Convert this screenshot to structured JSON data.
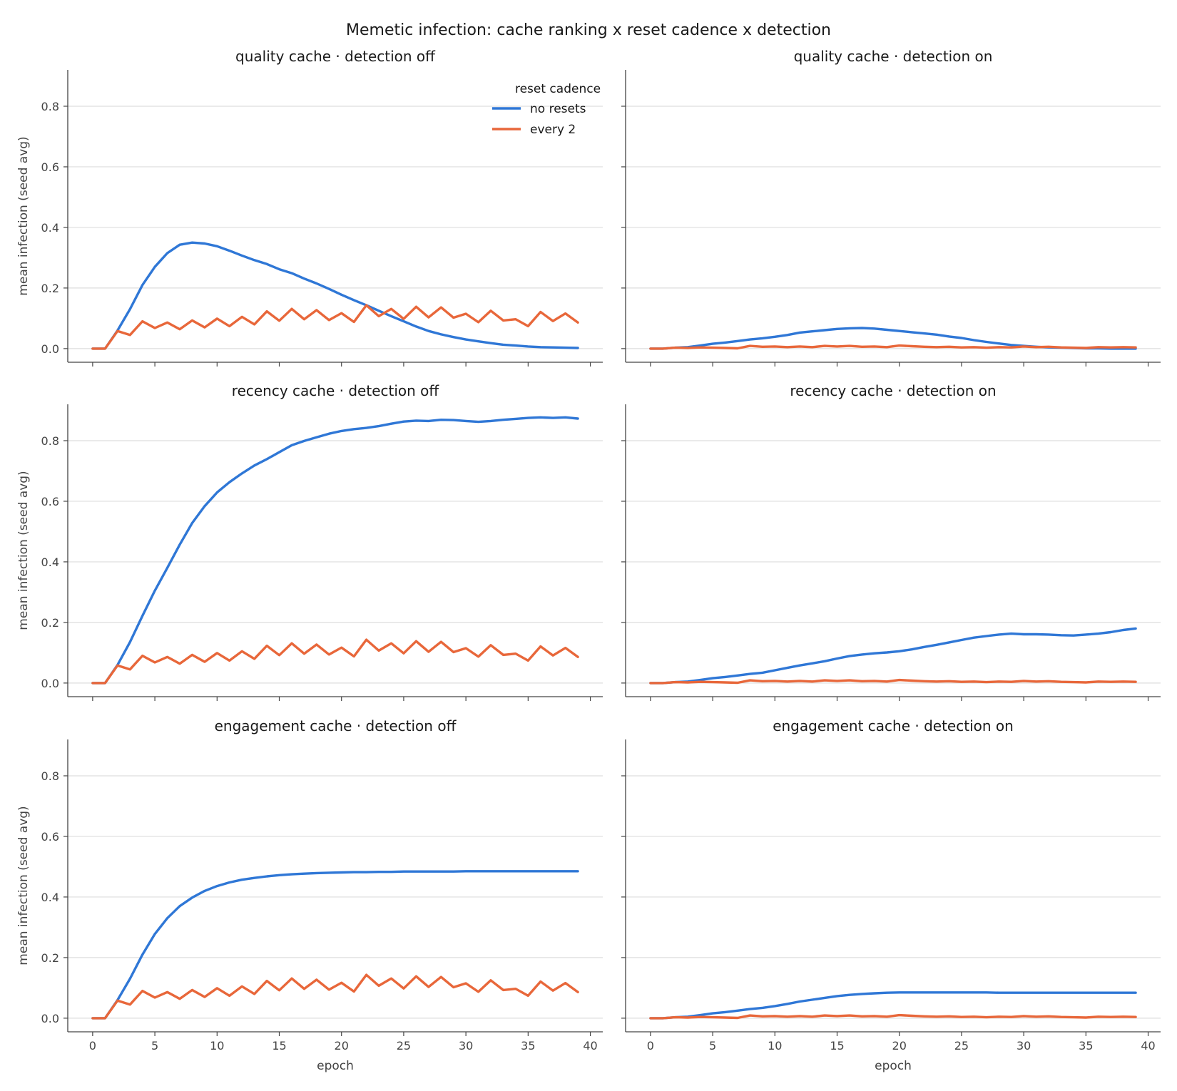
{
  "chart_data": {
    "type": "line",
    "title": "Memetic infection: cache ranking x reset cadence x detection",
    "xlabel": "epoch",
    "ylabel": "mean infection (seed avg)",
    "xlim": [
      -2,
      41
    ],
    "ylim": [
      -0.045,
      0.92
    ],
    "xticks": [
      0,
      5,
      10,
      15,
      20,
      25,
      30,
      35,
      40
    ],
    "yticks": [
      0.0,
      0.2,
      0.4,
      0.6,
      0.8
    ],
    "grid": "horizontal",
    "legend": {
      "title": "reset cadence",
      "placement": "top-right of first panel",
      "entries": [
        "no resets",
        "every 2"
      ]
    },
    "colors": {
      "no resets": "#2f77d6",
      "every 2": "#e8673a"
    },
    "x": [
      0,
      1,
      2,
      3,
      4,
      5,
      6,
      7,
      8,
      9,
      10,
      11,
      12,
      13,
      14,
      15,
      16,
      17,
      18,
      19,
      20,
      21,
      22,
      23,
      24,
      25,
      26,
      27,
      28,
      29,
      30,
      31,
      32,
      33,
      34,
      35,
      36,
      37,
      38,
      39
    ],
    "panels": [
      {
        "title": "quality cache · detection off",
        "series": [
          {
            "name": "no resets",
            "values": [
              0.0,
              0.0,
              0.06,
              0.13,
              0.21,
              0.27,
              0.315,
              0.343,
              0.35,
              0.347,
              0.338,
              0.323,
              0.307,
              0.292,
              0.279,
              0.262,
              0.249,
              0.231,
              0.215,
              0.197,
              0.178,
              0.16,
              0.143,
              0.125,
              0.107,
              0.09,
              0.073,
              0.058,
              0.047,
              0.038,
              0.03,
              0.024,
              0.018,
              0.013,
              0.01,
              0.007,
              0.005,
              0.004,
              0.003,
              0.002
            ]
          },
          {
            "name": "every 2",
            "values": [
              0.0,
              0.0,
              0.058,
              0.045,
              0.09,
              0.068,
              0.086,
              0.064,
              0.093,
              0.07,
              0.099,
              0.074,
              0.105,
              0.08,
              0.123,
              0.092,
              0.131,
              0.097,
              0.127,
              0.094,
              0.117,
              0.088,
              0.143,
              0.107,
              0.131,
              0.098,
              0.138,
              0.103,
              0.136,
              0.102,
              0.115,
              0.087,
              0.125,
              0.093,
              0.097,
              0.074,
              0.121,
              0.091,
              0.116,
              0.086
            ]
          }
        ]
      },
      {
        "title": "quality cache · detection on",
        "series": [
          {
            "name": "no resets",
            "values": [
              0.0,
              0.0,
              0.003,
              0.005,
              0.01,
              0.016,
              0.02,
              0.025,
              0.03,
              0.034,
              0.039,
              0.045,
              0.053,
              0.057,
              0.061,
              0.065,
              0.067,
              0.068,
              0.066,
              0.062,
              0.058,
              0.054,
              0.05,
              0.046,
              0.04,
              0.035,
              0.028,
              0.022,
              0.017,
              0.012,
              0.009,
              0.006,
              0.004,
              0.003,
              0.002,
              0.001,
              0.001,
              0.0,
              0.0,
              0.0
            ]
          },
          {
            "name": "every 2",
            "values": [
              0.0,
              0.0,
              0.003,
              0.002,
              0.004,
              0.003,
              0.002,
              0.001,
              0.009,
              0.006,
              0.007,
              0.005,
              0.007,
              0.005,
              0.009,
              0.007,
              0.009,
              0.006,
              0.007,
              0.005,
              0.01,
              0.008,
              0.006,
              0.005,
              0.006,
              0.004,
              0.005,
              0.003,
              0.005,
              0.004,
              0.007,
              0.005,
              0.006,
              0.004,
              0.003,
              0.002,
              0.005,
              0.004,
              0.005,
              0.004
            ]
          }
        ]
      },
      {
        "title": "recency cache · detection off",
        "series": [
          {
            "name": "no resets",
            "values": [
              0.0,
              0.0,
              0.06,
              0.135,
              0.222,
              0.305,
              0.38,
              0.457,
              0.528,
              0.584,
              0.629,
              0.663,
              0.692,
              0.718,
              0.739,
              0.762,
              0.785,
              0.799,
              0.811,
              0.823,
              0.832,
              0.838,
              0.842,
              0.848,
              0.856,
              0.863,
              0.866,
              0.865,
              0.869,
              0.868,
              0.865,
              0.862,
              0.865,
              0.869,
              0.872,
              0.875,
              0.877,
              0.875,
              0.877,
              0.873
            ]
          },
          {
            "name": "every 2",
            "values": [
              0.0,
              0.0,
              0.058,
              0.045,
              0.09,
              0.068,
              0.086,
              0.064,
              0.093,
              0.07,
              0.099,
              0.074,
              0.105,
              0.08,
              0.123,
              0.092,
              0.131,
              0.097,
              0.127,
              0.094,
              0.117,
              0.088,
              0.143,
              0.107,
              0.131,
              0.098,
              0.138,
              0.103,
              0.136,
              0.102,
              0.115,
              0.087,
              0.125,
              0.093,
              0.097,
              0.074,
              0.121,
              0.091,
              0.116,
              0.086
            ]
          }
        ]
      },
      {
        "title": "recency cache · detection on",
        "series": [
          {
            "name": "no resets",
            "values": [
              0.0,
              0.0,
              0.003,
              0.005,
              0.01,
              0.016,
              0.02,
              0.025,
              0.03,
              0.034,
              0.042,
              0.05,
              0.058,
              0.065,
              0.072,
              0.081,
              0.089,
              0.094,
              0.098,
              0.101,
              0.105,
              0.111,
              0.119,
              0.126,
              0.134,
              0.142,
              0.15,
              0.155,
              0.16,
              0.163,
              0.161,
              0.161,
              0.16,
              0.158,
              0.157,
              0.16,
              0.163,
              0.168,
              0.175,
              0.18
            ]
          },
          {
            "name": "every 2",
            "values": [
              0.0,
              0.0,
              0.003,
              0.002,
              0.004,
              0.003,
              0.002,
              0.001,
              0.009,
              0.006,
              0.007,
              0.005,
              0.007,
              0.005,
              0.009,
              0.007,
              0.009,
              0.006,
              0.007,
              0.005,
              0.01,
              0.008,
              0.006,
              0.005,
              0.006,
              0.004,
              0.005,
              0.003,
              0.005,
              0.004,
              0.007,
              0.005,
              0.006,
              0.004,
              0.003,
              0.002,
              0.005,
              0.004,
              0.005,
              0.004
            ]
          }
        ]
      },
      {
        "title": "engagement cache · detection off",
        "series": [
          {
            "name": "no resets",
            "values": [
              0.0,
              0.0,
              0.06,
              0.13,
              0.21,
              0.278,
              0.33,
              0.37,
              0.398,
              0.42,
              0.436,
              0.448,
              0.457,
              0.463,
              0.468,
              0.472,
              0.475,
              0.477,
              0.479,
              0.48,
              0.481,
              0.482,
              0.482,
              0.483,
              0.483,
              0.484,
              0.484,
              0.484,
              0.484,
              0.484,
              0.485,
              0.485,
              0.485,
              0.485,
              0.485,
              0.485,
              0.485,
              0.485,
              0.485,
              0.485
            ]
          },
          {
            "name": "every 2",
            "values": [
              0.0,
              0.0,
              0.058,
              0.045,
              0.09,
              0.068,
              0.086,
              0.064,
              0.093,
              0.07,
              0.099,
              0.074,
              0.105,
              0.08,
              0.123,
              0.092,
              0.131,
              0.097,
              0.127,
              0.094,
              0.117,
              0.088,
              0.143,
              0.107,
              0.131,
              0.098,
              0.138,
              0.103,
              0.136,
              0.102,
              0.115,
              0.087,
              0.125,
              0.093,
              0.097,
              0.074,
              0.121,
              0.091,
              0.116,
              0.086
            ]
          }
        ]
      },
      {
        "title": "engagement cache · detection on",
        "series": [
          {
            "name": "no resets",
            "values": [
              0.0,
              0.0,
              0.003,
              0.005,
              0.01,
              0.016,
              0.02,
              0.025,
              0.03,
              0.034,
              0.04,
              0.047,
              0.055,
              0.061,
              0.067,
              0.073,
              0.077,
              0.08,
              0.082,
              0.084,
              0.085,
              0.085,
              0.085,
              0.085,
              0.085,
              0.085,
              0.085,
              0.085,
              0.084,
              0.084,
              0.084,
              0.084,
              0.084,
              0.084,
              0.084,
              0.084,
              0.084,
              0.084,
              0.084,
              0.084
            ]
          },
          {
            "name": "every 2",
            "values": [
              0.0,
              0.0,
              0.003,
              0.002,
              0.004,
              0.003,
              0.002,
              0.001,
              0.009,
              0.006,
              0.007,
              0.005,
              0.007,
              0.005,
              0.009,
              0.007,
              0.009,
              0.006,
              0.007,
              0.005,
              0.01,
              0.008,
              0.006,
              0.005,
              0.006,
              0.004,
              0.005,
              0.003,
              0.005,
              0.004,
              0.007,
              0.005,
              0.006,
              0.004,
              0.003,
              0.002,
              0.005,
              0.004,
              0.005,
              0.004
            ]
          }
        ]
      }
    ]
  }
}
